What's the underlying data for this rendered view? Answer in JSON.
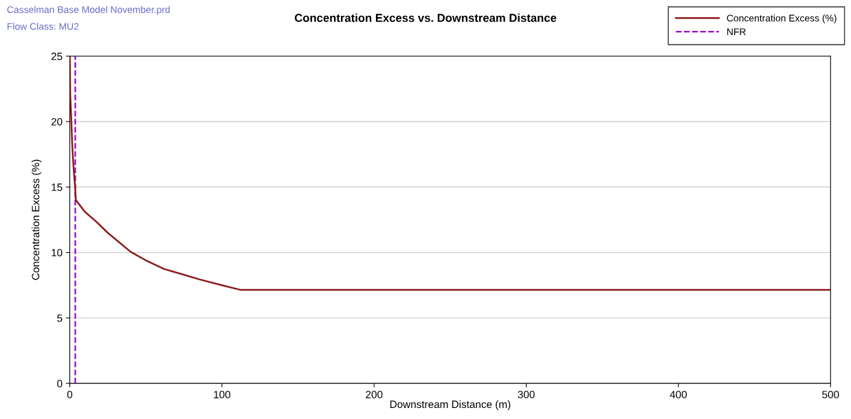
{
  "chart_data": {
    "type": "line",
    "title": "Concentration Excess vs. Downstream Distance",
    "annotations": [
      "Casselman Base Model November.prd",
      "Flow Class: MU2"
    ],
    "xlabel": "Downstream Distance (m)",
    "ylabel": "Concentration Excess (%)",
    "series": [
      {
        "name": "Concentration Excess (%)",
        "color": "#8b1a1a",
        "x": [
          0,
          0.3,
          0.9,
          1.5,
          2.2,
          2.8,
          3.5,
          4,
          10,
          17,
          25,
          40,
          50,
          62,
          75,
          85,
          100,
          112,
          500
        ],
        "values": [
          25,
          22,
          20.5,
          18.5,
          17,
          16,
          15,
          14,
          13.1,
          12.4,
          11.5,
          10.05,
          9.4,
          8.74,
          8.3,
          7.95,
          7.5,
          7.15,
          7.15
        ]
      }
    ],
    "ref_lines": [
      {
        "axis": "x",
        "value": 3.6,
        "label": "NFR",
        "color": "#9900cc",
        "line_style": "dashed"
      }
    ],
    "xlim": [
      0,
      500
    ],
    "xticks": [
      0,
      100,
      200,
      300,
      400,
      500
    ],
    "ylim": [
      0,
      25
    ],
    "yticks": [
      0,
      5,
      10,
      15,
      20,
      25
    ],
    "grid": "y",
    "legend": "top right",
    "marker": "none",
    "line_style": "solid"
  }
}
